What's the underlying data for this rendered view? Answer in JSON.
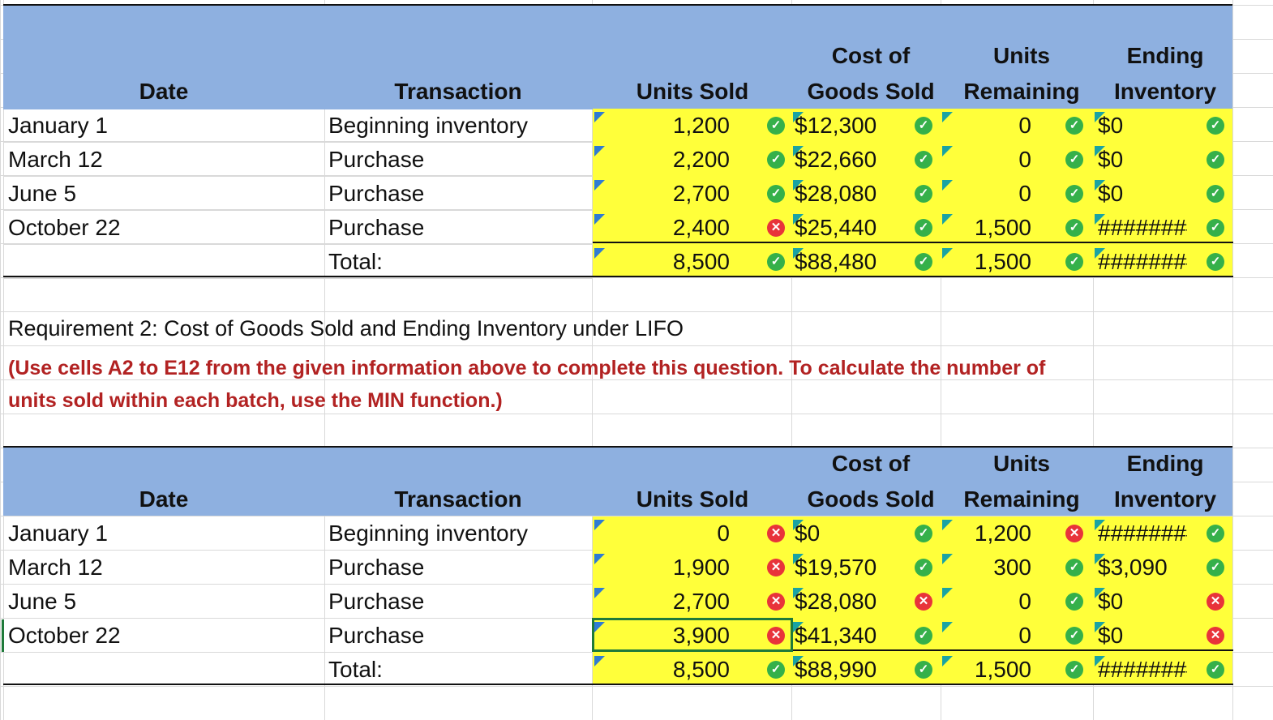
{
  "table1": {
    "headers": {
      "date": "Date",
      "transaction": "Transaction",
      "units_sold": "Units Sold",
      "cogs_line1": "Cost of",
      "cogs_line2": "Goods Sold",
      "units_remaining_line1": "Units",
      "units_remaining_line2": "Remaining",
      "ending_inventory_line1": "Ending",
      "ending_inventory_line2": "Inventory"
    },
    "rows": [
      {
        "date": "January 1",
        "transaction": "Beginning inventory",
        "units_sold": "1,200",
        "cogs": "$12,300",
        "units_remaining": "0",
        "ending_inventory": "$0",
        "marks": [
          "ok",
          "ok",
          "ok",
          "ok"
        ]
      },
      {
        "date": "March 12",
        "transaction": "Purchase",
        "units_sold": "2,200",
        "cogs": "$22,660",
        "units_remaining": "0",
        "ending_inventory": "$0",
        "marks": [
          "ok",
          "ok",
          "ok",
          "ok"
        ]
      },
      {
        "date": "June 5",
        "transaction": "Purchase",
        "units_sold": "2,700",
        "cogs": "$28,080",
        "units_remaining": "0",
        "ending_inventory": "$0",
        "marks": [
          "ok",
          "ok",
          "ok",
          "ok"
        ]
      },
      {
        "date": "October 22",
        "transaction": "Purchase",
        "units_sold": "2,400",
        "cogs": "$25,440",
        "units_remaining": "1,500",
        "ending_inventory": "########",
        "marks": [
          "bad",
          "ok",
          "ok",
          "ok"
        ]
      }
    ],
    "total": {
      "label": "Total:",
      "units_sold": "8,500",
      "cogs": "$88,480",
      "units_remaining": "1,500",
      "ending_inventory": "########",
      "marks": [
        "ok",
        "ok",
        "ok",
        "ok"
      ]
    }
  },
  "requirement": "Requirement 2: Cost of Goods Sold and Ending Inventory under LIFO",
  "instructions": "(Use cells A2 to E12 from the given information above to complete this question. To calculate the number of units sold within each batch, use the MIN function.)",
  "table2": {
    "headers": {
      "date": "Date",
      "transaction": "Transaction",
      "units_sold": "Units Sold",
      "cogs_line1": "Cost of",
      "cogs_line2": "Goods Sold",
      "units_remaining_line1": "Units",
      "units_remaining_line2": "Remaining",
      "ending_inventory_line1": "Ending",
      "ending_inventory_line2": "Inventory"
    },
    "rows": [
      {
        "date": "January 1",
        "transaction": "Beginning inventory",
        "units_sold": "0",
        "cogs": "$0",
        "units_remaining": "1,200",
        "ending_inventory": "########",
        "marks": [
          "bad",
          "ok",
          "bad",
          "ok"
        ]
      },
      {
        "date": "March 12",
        "transaction": "Purchase",
        "units_sold": "1,900",
        "cogs": "$19,570",
        "units_remaining": "300",
        "ending_inventory": "$3,090",
        "marks": [
          "bad",
          "ok",
          "ok",
          "ok"
        ]
      },
      {
        "date": "June 5",
        "transaction": "Purchase",
        "units_sold": "2,700",
        "cogs": "$28,080",
        "units_remaining": "0",
        "ending_inventory": "$0",
        "marks": [
          "bad",
          "bad",
          "ok",
          "bad"
        ]
      },
      {
        "date": "October 22",
        "transaction": "Purchase",
        "units_sold": "3,900",
        "cogs": "$41,340",
        "units_remaining": "0",
        "ending_inventory": "$0",
        "marks": [
          "bad",
          "ok",
          "ok",
          "bad"
        ]
      }
    ],
    "total": {
      "label": "Total:",
      "units_sold": "8,500",
      "cogs": "$88,990",
      "units_remaining": "1,500",
      "ending_inventory": "########",
      "marks": [
        "ok",
        "ok",
        "ok",
        "ok"
      ]
    }
  },
  "colors": {
    "header_blue": "#8eb0e0",
    "input_yellow": "#ffff3a",
    "correct_green": "#35b04a",
    "wrong_red": "#e8333a",
    "note_red": "#b22222"
  }
}
